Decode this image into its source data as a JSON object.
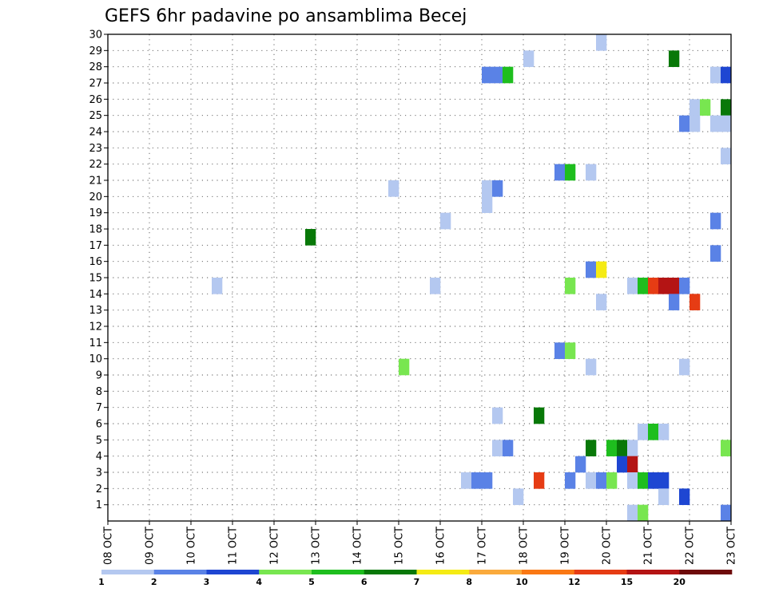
{
  "chart_data": {
    "type": "heatmap",
    "title": "GEFS 6hr padavine po ansamblima Becej",
    "x": {
      "unit": "6-hour steps from 08 OCT 00Z",
      "range": [
        0,
        60
      ],
      "tick_labels": [
        "08 OCT",
        "09 OCT",
        "10 OCT",
        "11 OCT",
        "12 OCT",
        "13 OCT",
        "14 OCT",
        "15 OCT",
        "16 OCT",
        "17 OCT",
        "18 OCT",
        "19 OCT",
        "20 OCT",
        "21 OCT",
        "22 OCT",
        "23 OCT"
      ]
    },
    "y": {
      "label": "",
      "range": [
        0,
        30
      ],
      "tick_labels": [
        "1",
        "2",
        "3",
        "4",
        "5",
        "6",
        "7",
        "8",
        "9",
        "10",
        "11",
        "12",
        "13",
        "14",
        "15",
        "16",
        "17",
        "18",
        "19",
        "20",
        "21",
        "22",
        "23",
        "24",
        "25",
        "26",
        "27",
        "28",
        "29",
        "30"
      ]
    },
    "grid": true,
    "colorbar": {
      "placement": "bottom",
      "labels": [
        "1",
        "2",
        "3",
        "4",
        "5",
        "6",
        "7",
        "8",
        "10",
        "12",
        "15",
        "20"
      ],
      "colors": [
        "#b4c8f0",
        "#5a82e6",
        "#1e46d2",
        "#78e650",
        "#1ebe1e",
        "#087808",
        "#f5eb14",
        "#faaa3c",
        "#fa7814",
        "#e63c14",
        "#b41414",
        "#6e0a0a"
      ]
    },
    "cells": [
      {
        "t": 47,
        "m": 30,
        "c": 0
      },
      {
        "t": 40,
        "m": 29,
        "c": 0
      },
      {
        "t": 54,
        "m": 29,
        "c": 5
      },
      {
        "t": 36,
        "m": 28,
        "c": 1
      },
      {
        "t": 37,
        "m": 28,
        "c": 1
      },
      {
        "t": 38,
        "m": 28,
        "c": 4
      },
      {
        "t": 58,
        "m": 28,
        "c": 0
      },
      {
        "t": 59,
        "m": 28,
        "c": 2
      },
      {
        "t": 56,
        "m": 26,
        "c": 0
      },
      {
        "t": 57,
        "m": 26,
        "c": 3
      },
      {
        "t": 59,
        "m": 26,
        "c": 5
      },
      {
        "t": 55,
        "m": 25,
        "c": 1
      },
      {
        "t": 56,
        "m": 25,
        "c": 0
      },
      {
        "t": 58,
        "m": 25,
        "c": 0
      },
      {
        "t": 59,
        "m": 25,
        "c": 0
      },
      {
        "t": 59,
        "m": 23,
        "c": 0
      },
      {
        "t": 43,
        "m": 22,
        "c": 1
      },
      {
        "t": 44,
        "m": 22,
        "c": 4
      },
      {
        "t": 46,
        "m": 22,
        "c": 0
      },
      {
        "t": 27,
        "m": 21,
        "c": 0
      },
      {
        "t": 36,
        "m": 21,
        "c": 0
      },
      {
        "t": 37,
        "m": 21,
        "c": 1
      },
      {
        "t": 36,
        "m": 20,
        "c": 0
      },
      {
        "t": 32,
        "m": 19,
        "c": 0
      },
      {
        "t": 58,
        "m": 19,
        "c": 1
      },
      {
        "t": 19,
        "m": 18,
        "c": 5
      },
      {
        "t": 58,
        "m": 17,
        "c": 1
      },
      {
        "t": 46,
        "m": 16,
        "c": 1
      },
      {
        "t": 47,
        "m": 16,
        "c": 6
      },
      {
        "t": 10,
        "m": 15,
        "c": 0
      },
      {
        "t": 31,
        "m": 15,
        "c": 0
      },
      {
        "t": 44,
        "m": 15,
        "c": 3
      },
      {
        "t": 50,
        "m": 15,
        "c": 0
      },
      {
        "t": 51,
        "m": 15,
        "c": 4
      },
      {
        "t": 52,
        "m": 15,
        "c": 9
      },
      {
        "t": 53,
        "m": 15,
        "c": 10
      },
      {
        "t": 54,
        "m": 15,
        "c": 10
      },
      {
        "t": 55,
        "m": 15,
        "c": 1
      },
      {
        "t": 47,
        "m": 14,
        "c": 0
      },
      {
        "t": 54,
        "m": 14,
        "c": 1
      },
      {
        "t": 56,
        "m": 14,
        "c": 9
      },
      {
        "t": 43,
        "m": 11,
        "c": 1
      },
      {
        "t": 44,
        "m": 11,
        "c": 3
      },
      {
        "t": 28,
        "m": 10,
        "c": 3
      },
      {
        "t": 46,
        "m": 10,
        "c": 0
      },
      {
        "t": 55,
        "m": 10,
        "c": 0
      },
      {
        "t": 37,
        "m": 7,
        "c": 0
      },
      {
        "t": 41,
        "m": 7,
        "c": 5
      },
      {
        "t": 51,
        "m": 6,
        "c": 0
      },
      {
        "t": 52,
        "m": 6,
        "c": 4
      },
      {
        "t": 53,
        "m": 6,
        "c": 0
      },
      {
        "t": 37,
        "m": 5,
        "c": 0
      },
      {
        "t": 38,
        "m": 5,
        "c": 1
      },
      {
        "t": 46,
        "m": 5,
        "c": 5
      },
      {
        "t": 48,
        "m": 5,
        "c": 4
      },
      {
        "t": 49,
        "m": 5,
        "c": 5
      },
      {
        "t": 50,
        "m": 5,
        "c": 0
      },
      {
        "t": 59,
        "m": 5,
        "c": 3
      },
      {
        "t": 45,
        "m": 4,
        "c": 1
      },
      {
        "t": 49,
        "m": 4,
        "c": 2
      },
      {
        "t": 50,
        "m": 4,
        "c": 10
      },
      {
        "t": 34,
        "m": 3,
        "c": 0
      },
      {
        "t": 35,
        "m": 3,
        "c": 1
      },
      {
        "t": 36,
        "m": 3,
        "c": 1
      },
      {
        "t": 41,
        "m": 3,
        "c": 9
      },
      {
        "t": 44,
        "m": 3,
        "c": 1
      },
      {
        "t": 46,
        "m": 3,
        "c": 0
      },
      {
        "t": 47,
        "m": 3,
        "c": 1
      },
      {
        "t": 48,
        "m": 3,
        "c": 3
      },
      {
        "t": 50,
        "m": 3,
        "c": 0
      },
      {
        "t": 51,
        "m": 3,
        "c": 4
      },
      {
        "t": 52,
        "m": 3,
        "c": 2
      },
      {
        "t": 53,
        "m": 3,
        "c": 2
      },
      {
        "t": 39,
        "m": 2,
        "c": 0
      },
      {
        "t": 53,
        "m": 2,
        "c": 0
      },
      {
        "t": 55,
        "m": 2,
        "c": 2
      },
      {
        "t": 50,
        "m": 1,
        "c": 0
      },
      {
        "t": 51,
        "m": 1,
        "c": 3
      },
      {
        "t": 59,
        "m": 1,
        "c": 1
      }
    ]
  }
}
